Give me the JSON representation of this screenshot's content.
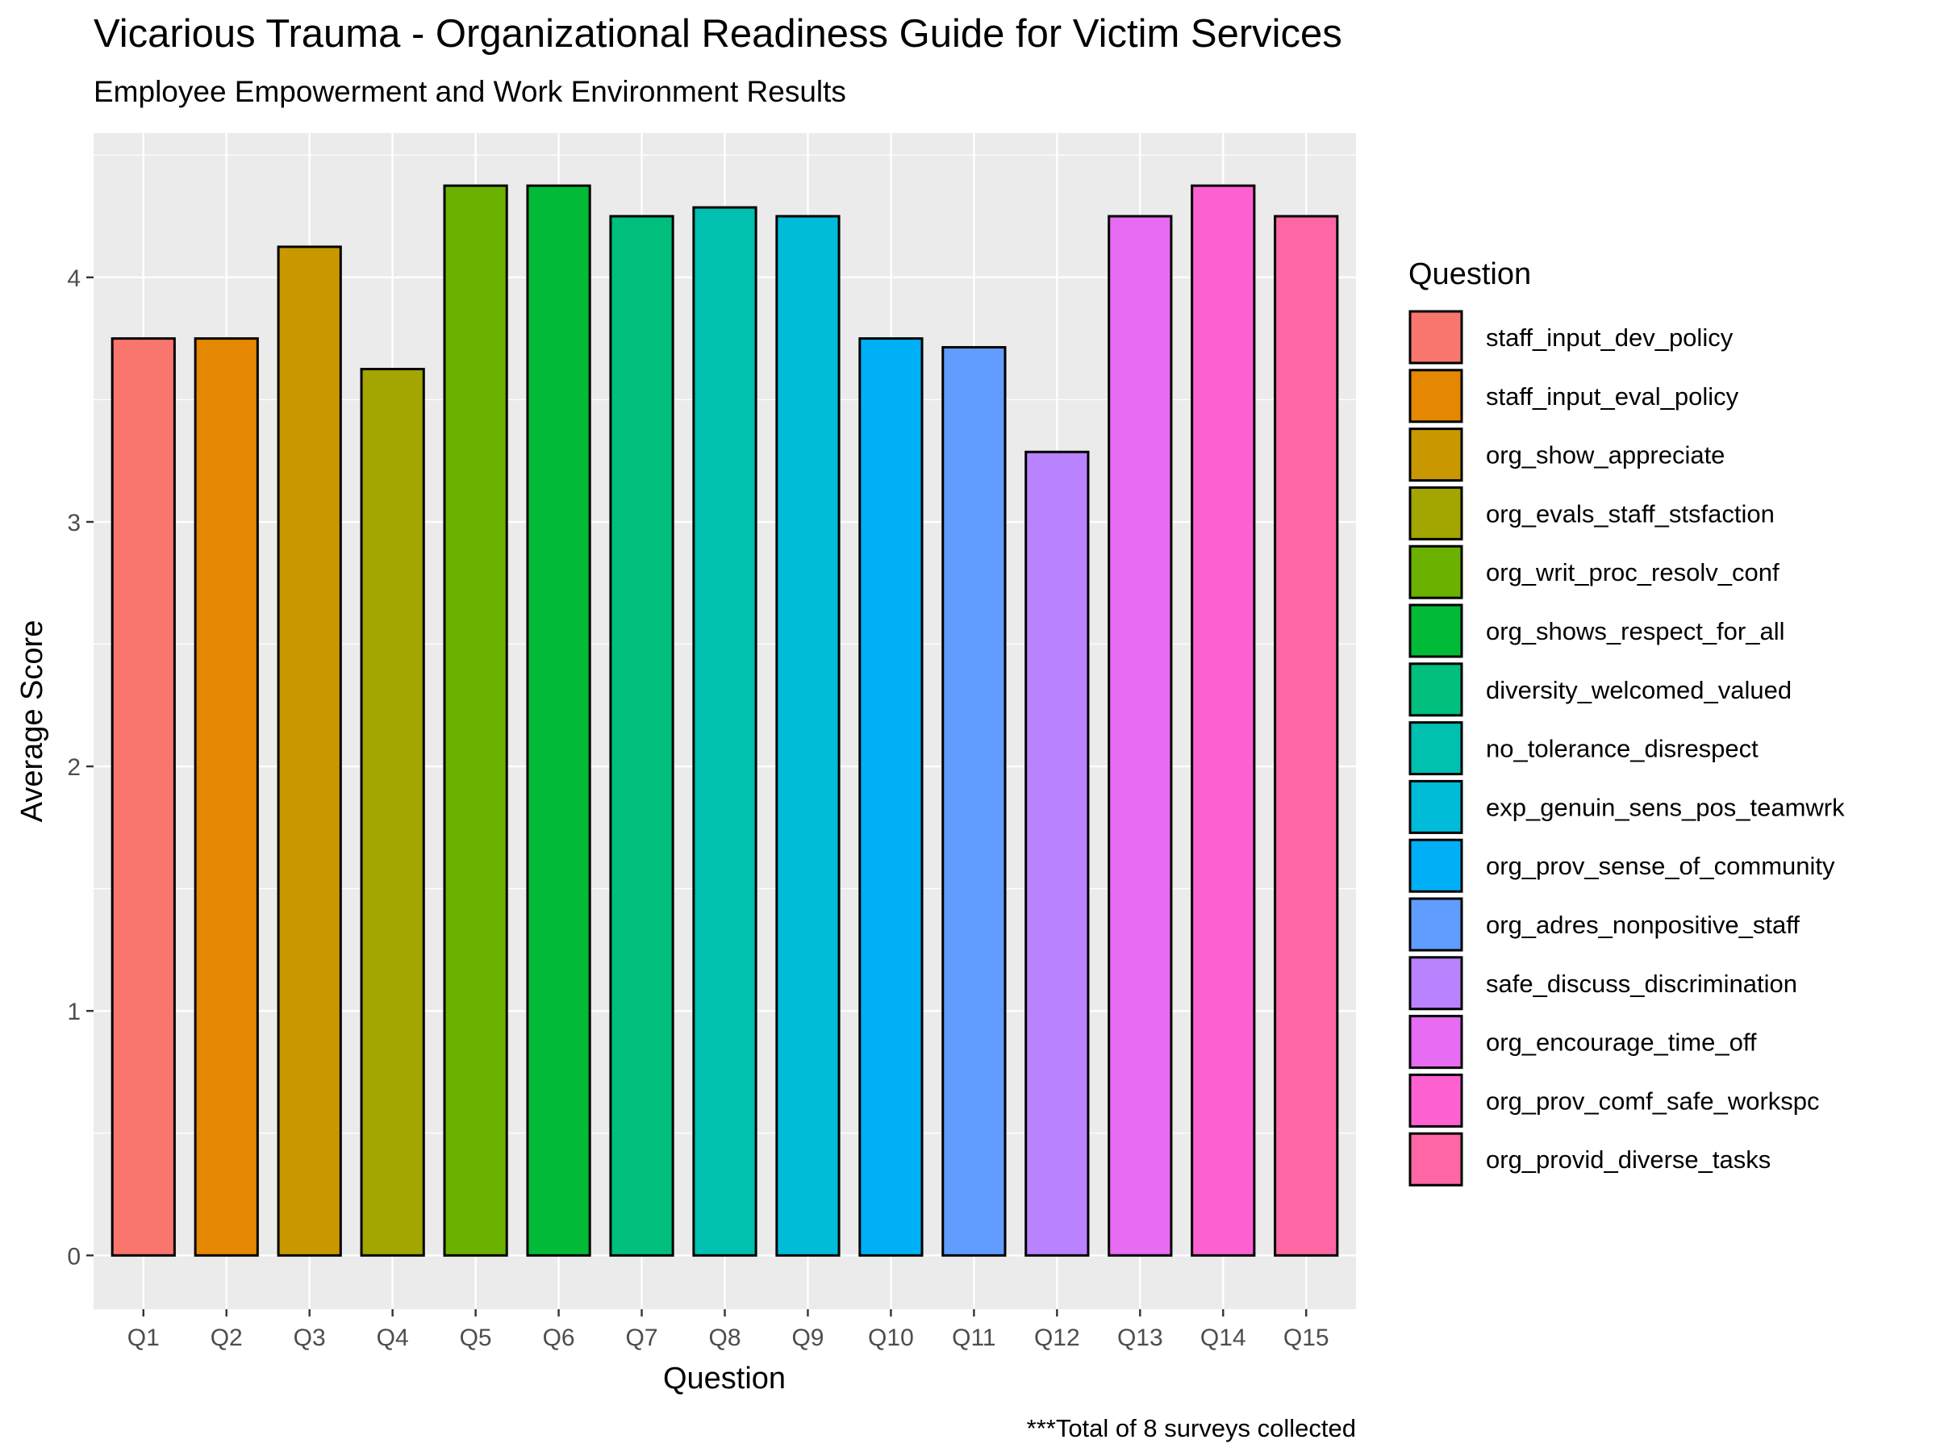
{
  "chart_data": {
    "type": "bar",
    "title": "Vicarious Trauma - Organizational Readiness Guide for Victim Services",
    "subtitle": "Employee Empowerment and Work Environment Results",
    "xlabel": "Question",
    "ylabel": "Average Score",
    "caption": "***Total of 8 surveys collected",
    "ylim": [
      -0.22,
      4.59
    ],
    "yticks": [
      0,
      1,
      2,
      3,
      4
    ],
    "grid": true,
    "legend_title": "Question",
    "legend_position": "right",
    "categories": [
      "Q1",
      "Q2",
      "Q3",
      "Q4",
      "Q5",
      "Q6",
      "Q7",
      "Q8",
      "Q9",
      "Q10",
      "Q11",
      "Q12",
      "Q13",
      "Q14",
      "Q15"
    ],
    "values": [
      3.75,
      3.75,
      4.125,
      3.625,
      4.375,
      4.375,
      4.25,
      4.286,
      4.25,
      3.75,
      3.714,
      3.286,
      4.25,
      4.375,
      4.25
    ],
    "legend_labels": [
      "staff_input_dev_policy",
      "staff_input_eval_policy",
      "org_show_appreciate",
      "org_evals_staff_stsfaction",
      "org_writ_proc_resolv_conf",
      "org_shows_respect_for_all",
      "diversity_welcomed_valued",
      "no_tolerance_disrespect",
      "exp_genuin_sens_pos_teamwrk",
      "org_prov_sense_of_community",
      "org_adres_nonpositive_staff",
      "safe_discuss_discrimination",
      "org_encourage_time_off",
      "org_prov_comf_safe_workspc",
      "org_provid_diverse_tasks"
    ],
    "colors": [
      "#F8766D",
      "#E58700",
      "#C99800",
      "#A3A500",
      "#6BB100",
      "#00BA38",
      "#00BF7D",
      "#00C0AF",
      "#00BCD8",
      "#00B0F6",
      "#619CFF",
      "#B983FF",
      "#E76BF3",
      "#FD61D1",
      "#FF67A4"
    ]
  }
}
